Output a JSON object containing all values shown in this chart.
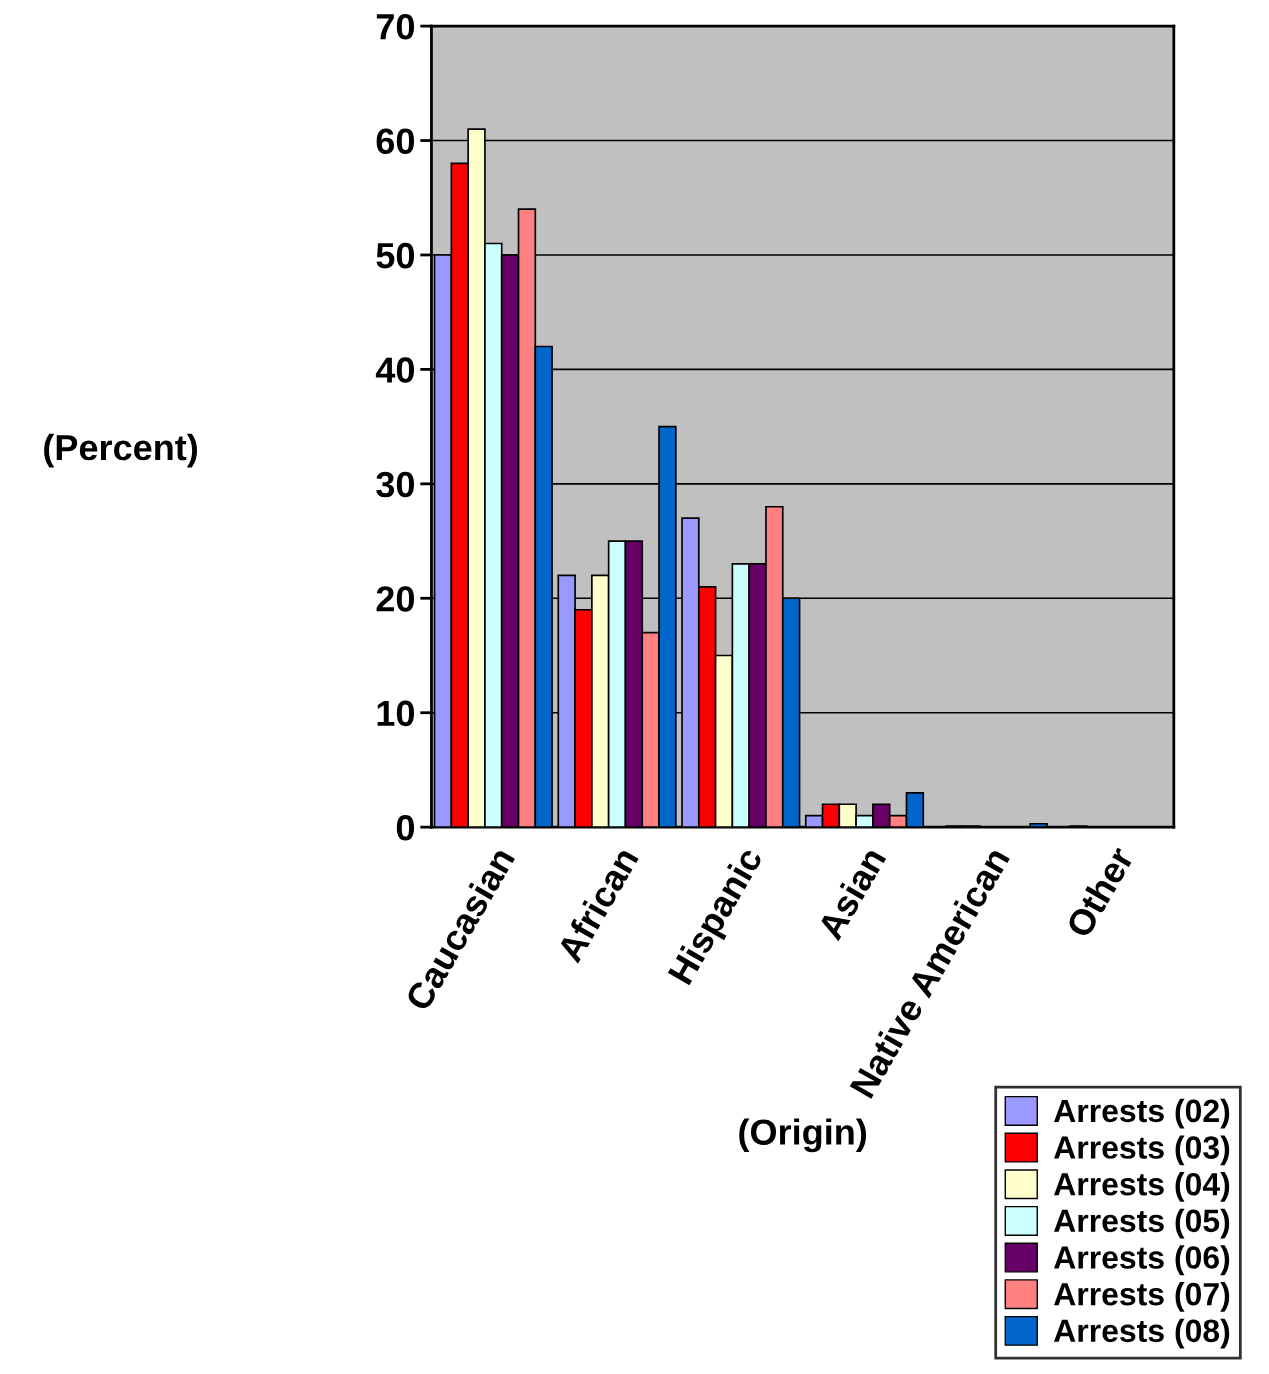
{
  "chart_data": {
    "type": "bar",
    "xlabel": "(Origin)",
    "ylabel": "(Percent)",
    "categories": [
      "Caucasian",
      "African",
      "Hispanic",
      "Asian",
      "Native American",
      "Other"
    ],
    "series": [
      {
        "name": "Arrests (02)",
        "color": "#9999ff",
        "values": [
          50,
          22,
          27,
          1,
          0,
          0
        ]
      },
      {
        "name": "Arrests (03)",
        "color": "#ff0000",
        "values": [
          58,
          19,
          21,
          2,
          0.1,
          0.1
        ]
      },
      {
        "name": "Arrests (04)",
        "color": "#ffffcc",
        "values": [
          61,
          22,
          15,
          2,
          0.1,
          0
        ]
      },
      {
        "name": "Arrests (05)",
        "color": "#ccffff",
        "values": [
          51,
          25,
          23,
          1,
          0,
          0
        ]
      },
      {
        "name": "Arrests (06)",
        "color": "#660066",
        "values": [
          50,
          25,
          23,
          2,
          0,
          0
        ]
      },
      {
        "name": "Arrests (07)",
        "color": "#ff8080",
        "values": [
          54,
          17,
          28,
          1,
          0,
          0
        ]
      },
      {
        "name": "Arrests (08)",
        "color": "#0066cc",
        "values": [
          42,
          35,
          20,
          3,
          0.3,
          0
        ]
      }
    ],
    "ylim": [
      0,
      70
    ],
    "yticks": [
      0,
      10,
      20,
      30,
      40,
      50,
      60,
      70
    ],
    "grid": "y",
    "legend": "bottom right"
  }
}
